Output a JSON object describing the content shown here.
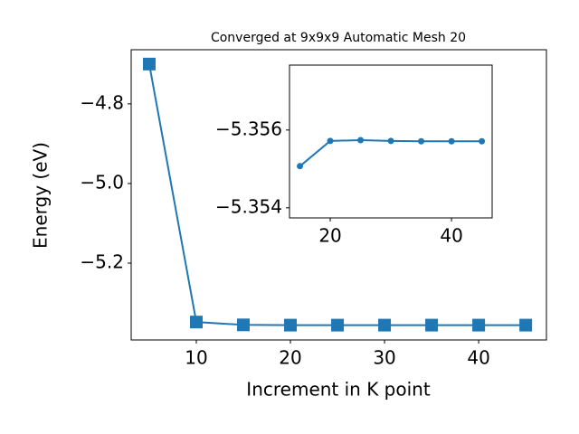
{
  "chart_data": [
    {
      "type": "line",
      "title": "Converged at 9x9x9 Automatic Mesh 20",
      "x_label": "Increment in K point",
      "y_label": "Energy (eV)",
      "marker": "square",
      "x": [
        5,
        10,
        15,
        20,
        25,
        30,
        35,
        40,
        45
      ],
      "series": [
        {
          "color": "#1f77b4",
          "values": [
            -4.7,
            -5.348,
            -5.35507,
            -5.35572,
            -5.35574,
            -5.35572,
            -5.35571,
            -5.35571,
            -5.35571
          ]
        }
      ],
      "xlim": [
        3.08,
        47.2
      ],
      "ylim": [
        -5.393,
        -4.664
      ],
      "xticks": [
        10,
        20,
        30,
        40
      ],
      "yticks": [
        {
          "value": -4.8,
          "label": "−4.8"
        },
        {
          "value": -5.0,
          "label": "−5.0"
        },
        {
          "value": -5.2,
          "label": "−5.2"
        }
      ]
    },
    {
      "type": "line",
      "marker": "circle",
      "x": [
        15,
        20,
        25,
        30,
        35,
        40,
        45
      ],
      "series": [
        {
          "color": "#1f77b4",
          "values": [
            -5.35507,
            -5.35572,
            -5.35574,
            -5.35572,
            -5.35571,
            -5.35571,
            -5.35571
          ]
        }
      ],
      "xlim": [
        13.28,
        46.7
      ],
      "ylim": [
        -5.35374,
        -5.35767
      ],
      "xticks": [
        20,
        40
      ],
      "yticks": [
        {
          "value": -5.356,
          "label": "−5.356"
        },
        {
          "value": -5.354,
          "label": "−5.354"
        }
      ]
    }
  ]
}
